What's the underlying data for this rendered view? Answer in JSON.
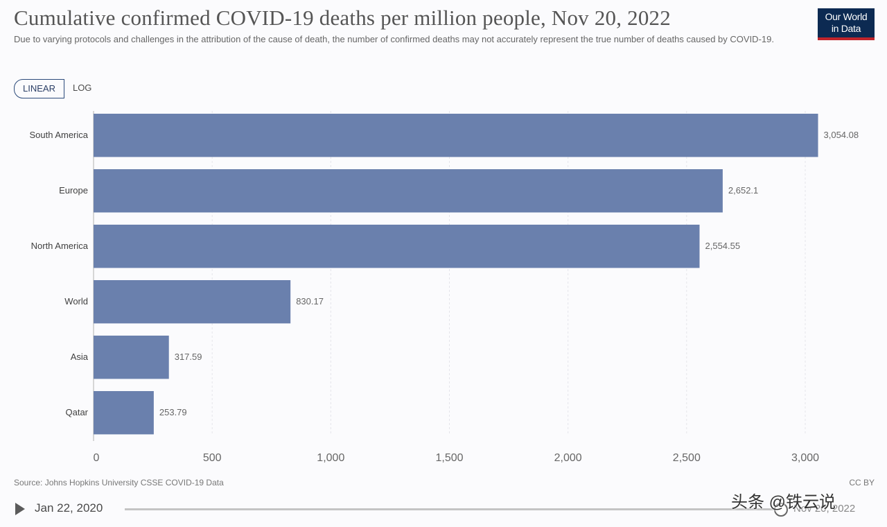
{
  "header": {
    "title": "Cumulative confirmed COVID-19 deaths per million people, Nov 20, 2022",
    "subtitle": "Due to varying protocols and challenges in the attribution of the cause of death, the number of confirmed deaths may not accurately represent the true number of deaths caused by COVID-19."
  },
  "logo": {
    "line1": "Our World",
    "line2": "in Data"
  },
  "scale_toggle": {
    "linear": "LINEAR",
    "log": "LOG",
    "selected": "LINEAR"
  },
  "colors": {
    "bar": "#6a80ad",
    "grid": "#e4e4ea",
    "axis": "#b0b0b0"
  },
  "chart_data": {
    "type": "bar",
    "orientation": "horizontal",
    "categories": [
      "South America",
      "Europe",
      "North America",
      "World",
      "Asia",
      "Qatar"
    ],
    "values": [
      3054.08,
      2652.1,
      2554.55,
      830.17,
      317.59,
      253.79
    ],
    "value_labels": [
      "3,054.08",
      "2,652.1",
      "2,554.55",
      "830.17",
      "317.59",
      "253.79"
    ],
    "xlim": [
      0,
      3000
    ],
    "xticks": [
      0,
      500,
      1000,
      1500,
      2000,
      2500,
      3000
    ],
    "xtick_labels": [
      "0",
      "500",
      "1,000",
      "1,500",
      "2,000",
      "2,500",
      "3,000"
    ],
    "title": "Cumulative confirmed COVID-19 deaths per million people, Nov 20, 2022",
    "xlabel": "",
    "ylabel": "",
    "grid": true
  },
  "footer": {
    "source": "Source: Johns Hopkins University CSSE COVID-19 Data",
    "license": "CC BY"
  },
  "timeline": {
    "start_label": "Jan 22, 2020",
    "end_label": "Nov 20, 2022",
    "position": 1.0
  },
  "watermark": "头条 @铁云说"
}
